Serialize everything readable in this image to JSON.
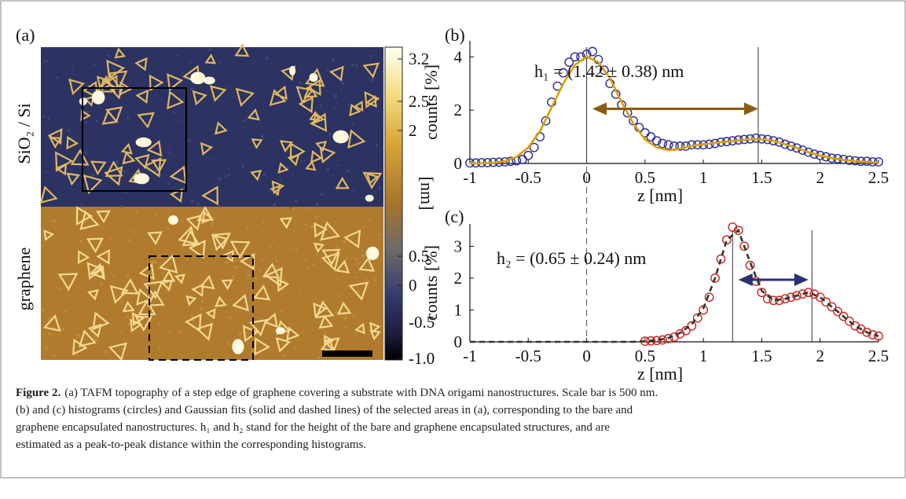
{
  "panel_a": {
    "label": "(a)",
    "side_labels": [
      "SiO₂ / Si",
      "graphene"
    ],
    "colorbar_unit": "[nm]",
    "colorbar_labels": [
      "3.2",
      "2.5",
      "2",
      "0.5",
      "0",
      "-0.5",
      "-1.0"
    ]
  },
  "chart_data": [
    {
      "type": "scatter",
      "panel": "(b)",
      "xlabel": "z [nm]",
      "ylabel": "counts [%]",
      "annotation": "h₁ = (1.42 ± 0.38) nm",
      "xlim": [
        -1,
        2.5
      ],
      "ylim": [
        0,
        4.6
      ],
      "xticks": [
        -1,
        -0.5,
        0,
        0.5,
        1,
        1.5,
        2,
        2.5
      ],
      "yticks": [
        0,
        2,
        4
      ],
      "vlines": [
        0,
        1.47
      ],
      "arrow": {
        "x": [
          0.05,
          1.47
        ],
        "y": 2.05,
        "color": "#8b5a14"
      },
      "series": [
        {
          "color": "#2a2a9a",
          "marker": "circle",
          "x": [
            -1,
            -0.95,
            -0.9,
            -0.85,
            -0.8,
            -0.75,
            -0.7,
            -0.65,
            -0.6,
            -0.55,
            -0.5,
            -0.45,
            -0.4,
            -0.35,
            -0.3,
            -0.25,
            -0.2,
            -0.15,
            -0.1,
            -0.05,
            0,
            0.05,
            0.1,
            0.15,
            0.2,
            0.25,
            0.3,
            0.35,
            0.4,
            0.45,
            0.5,
            0.55,
            0.6,
            0.65,
            0.7,
            0.75,
            0.8,
            0.85,
            0.9,
            0.95,
            1,
            1.05,
            1.1,
            1.15,
            1.2,
            1.25,
            1.3,
            1.35,
            1.4,
            1.45,
            1.5,
            1.55,
            1.6,
            1.65,
            1.7,
            1.75,
            1.8,
            1.85,
            1.9,
            1.95,
            2,
            2.05,
            2.1,
            2.15,
            2.2,
            2.25,
            2.3,
            2.35,
            2.4,
            2.45,
            2.5
          ],
          "values": [
            0.02,
            0.02,
            0.03,
            0.03,
            0.04,
            0.05,
            0.06,
            0.08,
            0.1,
            0.15,
            0.3,
            0.6,
            1.0,
            1.6,
            2.3,
            2.9,
            3.4,
            3.8,
            4.0,
            4.0,
            4.1,
            4.2,
            3.9,
            3.5,
            3.0,
            2.6,
            2.2,
            1.9,
            1.6,
            1.35,
            1.15,
            1.0,
            0.85,
            0.75,
            0.7,
            0.65,
            0.65,
            0.65,
            0.7,
            0.7,
            0.7,
            0.72,
            0.75,
            0.8,
            0.82,
            0.85,
            0.88,
            0.9,
            0.92,
            0.95,
            0.92,
            0.9,
            0.85,
            0.8,
            0.72,
            0.65,
            0.58,
            0.5,
            0.42,
            0.35,
            0.3,
            0.25,
            0.2,
            0.18,
            0.15,
            0.12,
            0.1,
            0.08,
            0.08,
            0.06,
            0.06
          ]
        },
        {
          "color": "#d9a000",
          "line_style": "solid",
          "x": [
            -1,
            -0.9,
            -0.8,
            -0.7,
            -0.6,
            -0.5,
            -0.4,
            -0.3,
            -0.2,
            -0.1,
            0,
            0.1,
            0.2,
            0.3,
            0.4,
            0.5,
            0.6,
            0.7,
            0.8,
            0.9,
            1,
            1.1,
            1.2,
            1.3,
            1.4,
            1.5,
            1.6,
            1.7,
            1.8,
            1.9,
            2,
            2.1,
            2.2,
            2.3,
            2.4,
            2.5
          ],
          "values": [
            0,
            0,
            0.02,
            0.08,
            0.25,
            0.6,
            1.2,
            2.1,
            3.0,
            3.7,
            4.0,
            3.8,
            3.2,
            2.3,
            1.5,
            0.9,
            0.6,
            0.5,
            0.55,
            0.65,
            0.72,
            0.78,
            0.82,
            0.86,
            0.9,
            0.9,
            0.85,
            0.72,
            0.58,
            0.42,
            0.3,
            0.2,
            0.13,
            0.08,
            0.05,
            0.03
          ]
        }
      ]
    },
    {
      "type": "scatter",
      "panel": "(c)",
      "xlabel": "z [nm]",
      "ylabel": "counts [%]",
      "annotation": "h₂ = (0.65 ± 0.24) nm",
      "xlim": [
        -1,
        2.5
      ],
      "ylim": [
        0,
        3.7
      ],
      "xticks": [
        -1,
        -0.5,
        0,
        0.5,
        1,
        1.5,
        2,
        2.5
      ],
      "yticks": [
        0,
        1,
        2,
        3
      ],
      "vlines": [
        1.25,
        1.93
      ],
      "dashed_vlines": [
        0
      ],
      "arrow": {
        "x": [
          1.3,
          1.9
        ],
        "y": 1.95,
        "color": "#2a3070"
      },
      "series": [
        {
          "color": "#cc2222",
          "marker": "circle",
          "x": [
            0.5,
            0.55,
            0.6,
            0.65,
            0.7,
            0.75,
            0.8,
            0.85,
            0.9,
            0.95,
            1,
            1.05,
            1.1,
            1.15,
            1.2,
            1.25,
            1.3,
            1.35,
            1.4,
            1.45,
            1.5,
            1.55,
            1.6,
            1.65,
            1.7,
            1.75,
            1.8,
            1.85,
            1.9,
            1.95,
            2,
            2.05,
            2.1,
            2.15,
            2.2,
            2.25,
            2.3,
            2.35,
            2.4,
            2.45,
            2.5
          ],
          "values": [
            0.02,
            0.03,
            0.04,
            0.06,
            0.1,
            0.15,
            0.25,
            0.35,
            0.5,
            0.75,
            1.0,
            1.4,
            2.0,
            2.6,
            3.2,
            3.6,
            3.5,
            3.0,
            2.4,
            1.9,
            1.55,
            1.35,
            1.3,
            1.3,
            1.35,
            1.4,
            1.45,
            1.5,
            1.55,
            1.5,
            1.4,
            1.25,
            1.1,
            0.95,
            0.8,
            0.65,
            0.5,
            0.4,
            0.3,
            0.22,
            0.18
          ]
        },
        {
          "color": "#2b3b2b",
          "line_style": "dashed",
          "x": [
            -1,
            -0.9,
            -0.8,
            -0.7,
            -0.6,
            -0.5,
            -0.4,
            -0.3,
            -0.2,
            -0.1,
            0,
            0.1,
            0.2,
            0.3,
            0.4,
            0.5,
            0.6,
            0.7,
            0.8,
            0.9,
            1,
            1.1,
            1.2,
            1.3,
            1.4,
            1.5,
            1.6,
            1.7,
            1.8,
            1.9,
            2,
            2.1,
            2.2,
            2.3,
            2.4,
            2.5
          ],
          "values": [
            0,
            0,
            0,
            0,
            0,
            0,
            0,
            0,
            0,
            0,
            0,
            0,
            0,
            0,
            0,
            0.02,
            0.05,
            0.12,
            0.28,
            0.55,
            1.05,
            2.0,
            3.2,
            3.5,
            2.5,
            1.6,
            1.3,
            1.35,
            1.45,
            1.55,
            1.4,
            1.1,
            0.8,
            0.5,
            0.3,
            0.18
          ]
        }
      ]
    }
  ],
  "caption": {
    "label": "Figure 2.",
    "lines": [
      "(a) TAFM topography of a step edge of graphene covering a substrate with DNA origami nanostructures. Scale bar is 500 nm.",
      "(b) and (c) histograms (circles) and Gaussian fits (solid and dashed lines) of the selected areas in (a), corresponding to the bare and",
      "graphene encapsulated nanostructures. h₁ and h₂ stand for the height of the bare and graphene encapsulated structures, and are",
      "estimated as a peak-to-peak distance within the corresponding histograms."
    ]
  }
}
